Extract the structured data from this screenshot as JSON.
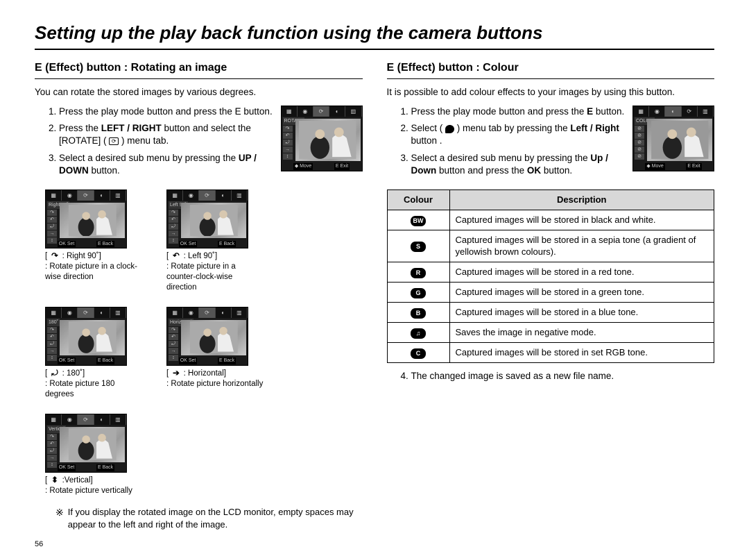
{
  "page_title": "Setting up the play back function using the camera buttons",
  "page_number": "56",
  "left": {
    "heading": "E (Effect) button : Rotating an image",
    "intro": "You can rotate the stored images by various degrees.",
    "steps": [
      "Press the play mode button and press the E button.",
      "Press the <b>LEFT / RIGHT</b> button and select the [ROTATE] ( <span class='menu-icon'>⟳</span> ) menu tab.",
      "Select a desired sub menu by pressing the <b>UP / DOWN</b> button."
    ],
    "screen": {
      "title": "ROTATE",
      "bottom_left": "◆ Move",
      "bottom_right": "E Exit"
    },
    "rotations": [
      {
        "lcd_title": "Right 90˚",
        "glyph": "↷",
        "label": " : Right 90˚]",
        "desc": ": Rotate picture in a clock-wise direction"
      },
      {
        "lcd_title": "Left 90˚",
        "glyph": "↶",
        "label": " : Left 90˚]",
        "desc": ": Rotate picture in a counter-clock-wise direction"
      },
      {
        "lcd_title": "180˚",
        "glyph": "⤾",
        "label": " : 180˚]",
        "desc": ": Rotate picture 180 degrees"
      },
      {
        "lcd_title": "Horizontal",
        "glyph": "➔",
        "label": " : Horizontal]",
        "desc": ": Rotate picture horizontally"
      },
      {
        "lcd_title": "Vertical",
        "glyph": "⬍",
        "label": " :Vertical]",
        "desc": ": Rotate picture vertically"
      }
    ],
    "rotation_bottom": {
      "left": "OK Set",
      "right": "E Back"
    },
    "note": "If you display the rotated image on the LCD monitor, empty spaces may appear to the left and right of the image.",
    "note_sym": "※"
  },
  "right": {
    "heading": "E (Effect) button : Colour",
    "intro": "It is possible to add colour effects to your images by using this button.",
    "steps": [
      "Press the play mode button and press the <b>E</b> button.",
      "Select ( <span class='palette-icon'></span> ) menu tab by pressing the <b>Left / Right</b> button .",
      "Select a desired sub menu by pressing the <b>Up / Down</b> button and press the <b>OK</b> button."
    ],
    "screen": {
      "title": "COLOR",
      "bottom_left": "◆ Move",
      "bottom_right": "E Exit"
    },
    "table_headers": [
      "Colour",
      "Description"
    ],
    "table_rows": [
      {
        "icon": "BW",
        "desc": "Captured images will be stored in   black and white."
      },
      {
        "icon": "S",
        "desc": "Captured images will be stored in a sepia tone (a gradient of yellowish brown colours)."
      },
      {
        "icon": "R",
        "desc": "Captured images will be stored in a red tone."
      },
      {
        "icon": "G",
        "desc": "Captured images will be stored in a green tone."
      },
      {
        "icon": "B",
        "desc": "Captured images will be stored in a blue tone."
      },
      {
        "icon": "♫",
        "desc": "Saves the image in negative mode."
      },
      {
        "icon": "C",
        "desc": "Captured images will be stored in set RGB tone."
      }
    ],
    "step4": "The changed image is saved as a new file name."
  }
}
